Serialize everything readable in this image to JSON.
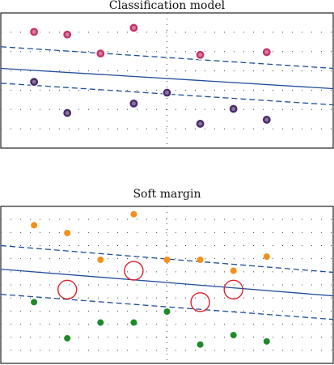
{
  "panels": [
    {
      "title": "Classification model",
      "colors": {
        "class_a": "#c4346a",
        "class_b": "#4a2a6a",
        "line": "#1f4e9a",
        "grid": "#444444"
      },
      "points_class_a": [
        {
          "x": 1,
          "y": 8.6
        },
        {
          "x": 2,
          "y": 8.4
        },
        {
          "x": 3,
          "y": 7.0
        },
        {
          "x": 4,
          "y": 8.9
        },
        {
          "x": 6,
          "y": 6.9
        },
        {
          "x": 8,
          "y": 7.1
        }
      ],
      "points_class_b": [
        {
          "x": 1,
          "y": 4.9
        },
        {
          "x": 2,
          "y": 2.6
        },
        {
          "x": 4,
          "y": 3.3
        },
        {
          "x": 5,
          "y": 4.1
        },
        {
          "x": 6,
          "y": 1.8
        },
        {
          "x": 7,
          "y": 2.9
        },
        {
          "x": 8,
          "y": 2.1
        }
      ]
    },
    {
      "title": "Soft margin",
      "colors": {
        "class_a": "#f39019",
        "class_b": "#1f8a2a",
        "line": "#1f4e9a",
        "grid": "#444444",
        "circle": "#e01e2a"
      },
      "points_class_a": [
        {
          "x": 1,
          "y": 8.8
        },
        {
          "x": 2,
          "y": 8.3
        },
        {
          "x": 3,
          "y": 6.6
        },
        {
          "x": 4,
          "y": 9.5
        },
        {
          "x": 5,
          "y": 6.6
        },
        {
          "x": 6,
          "y": 6.6
        },
        {
          "x": 7,
          "y": 5.9
        },
        {
          "x": 8,
          "y": 6.8
        }
      ],
      "points_class_b": [
        {
          "x": 1,
          "y": 3.9
        },
        {
          "x": 2,
          "y": 1.6
        },
        {
          "x": 3,
          "y": 2.6
        },
        {
          "x": 4,
          "y": 2.6
        },
        {
          "x": 5,
          "y": 3.3
        },
        {
          "x": 6,
          "y": 1.2
        },
        {
          "x": 7,
          "y": 1.8
        },
        {
          "x": 8,
          "y": 1.4
        }
      ],
      "circled_points": [
        {
          "x": 2,
          "y": 4.7
        },
        {
          "x": 4,
          "y": 5.9
        },
        {
          "x": 6,
          "y": 3.9
        },
        {
          "x": 7,
          "y": 4.7
        }
      ]
    }
  ]
}
